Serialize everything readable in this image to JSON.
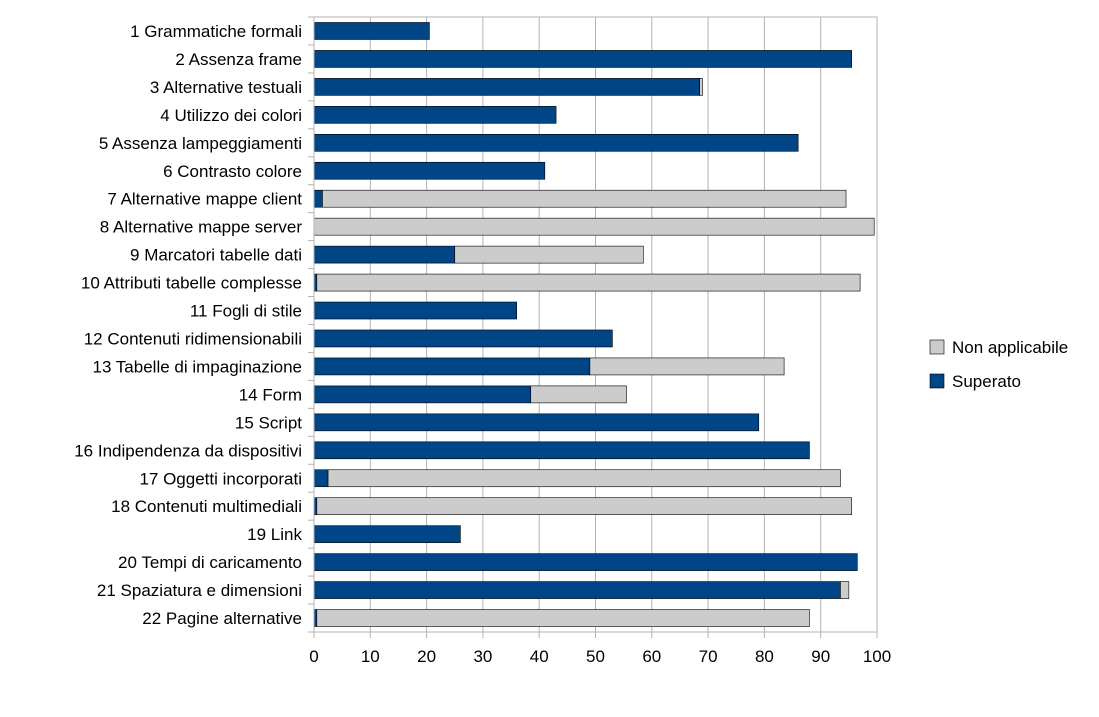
{
  "chart_data": {
    "type": "bar",
    "orientation": "horizontal",
    "stacked": true,
    "categories": [
      "1 Grammatiche formali",
      "2 Assenza frame",
      "3 Alternative testuali",
      "4 Utilizzo dei colori",
      "5 Assenza lampeggiamenti",
      "6 Contrasto colore",
      "7 Alternative mappe client",
      "8 Alternative mappe server",
      "9 Marcatori tabelle dati",
      "10 Attributi tabelle complesse",
      "11 Fogli di stile",
      "12 Contenuti ridimensionabili",
      "13 Tabelle di impaginazione",
      "14 Form ",
      "15 Script",
      "16 Indipendenza da dispositivi",
      "17 Oggetti incorporati",
      "18 Contenuti multimediali",
      "19 Link",
      "20 Tempi di caricamento",
      "21 Spaziatura e dimensioni",
      "22 Pagine alternative"
    ],
    "series": [
      {
        "name": "Superato",
        "color": "#004586",
        "values": [
          20.5,
          95.5,
          68.5,
          43,
          86,
          41,
          1.5,
          0,
          25,
          0.5,
          36,
          53,
          49,
          38.5,
          79,
          88,
          2.5,
          0.5,
          26,
          96.5,
          93.5,
          0.5
        ]
      },
      {
        "name": "Non applicabile",
        "color": "#cccccc",
        "values": [
          0,
          0,
          0.5,
          0,
          0,
          0,
          93,
          99.5,
          33.5,
          96.5,
          0,
          0,
          34.5,
          17,
          0,
          0,
          91,
          95,
          0,
          0,
          1.5,
          87.5
        ]
      }
    ],
    "legend_order": [
      "Non applicabile",
      "Superato"
    ],
    "legend_position": "right",
    "xlim": [
      0,
      100
    ],
    "xticks": [
      "0",
      "10",
      "20",
      "30",
      "40",
      "50",
      "60",
      "70",
      "80",
      "90",
      "100"
    ],
    "grid": true,
    "title": "",
    "xlabel": "",
    "ylabel": ""
  }
}
